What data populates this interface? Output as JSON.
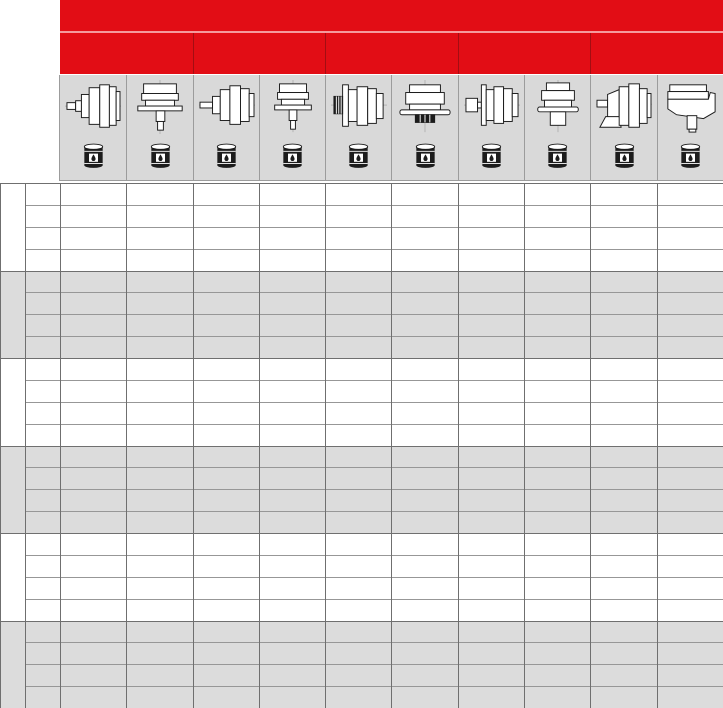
{
  "colors": {
    "accent_red": "#e20d15",
    "red_divider": "#a30d12",
    "red_band_gap": "#f59a9d",
    "header_cell_gray": "#d9d9d9",
    "row_gray": "#dcdcdc",
    "grid_line": "#6f6f6f",
    "row_line": "#979797",
    "drawing_ink": "#1c1c1c"
  },
  "header": {
    "title_band": {
      "text": ""
    },
    "group_cells": [
      {
        "text": ""
      },
      {
        "text": ""
      },
      {
        "text": ""
      },
      {
        "text": ""
      },
      {
        "text": ""
      }
    ],
    "columns": [
      {
        "icon": "gearmotor-horizontal-shaft-left-icon",
        "symbol": "m1",
        "oil_icon": "oil-barrel-icon"
      },
      {
        "icon": "gearmotor-vertical-shaft-down-icon",
        "symbol": "m2",
        "oil_icon": "oil-barrel-icon"
      },
      {
        "icon": "gearmotor-horizontal-long-shaft-icon",
        "symbol": "m3",
        "oil_icon": "oil-barrel-icon"
      },
      {
        "icon": "gearmotor-vertical-shaft-down-narrow-icon",
        "symbol": "m4",
        "oil_icon": "oil-barrel-icon"
      },
      {
        "icon": "gearmotor-horizontal-ribbed-hub-icon",
        "symbol": "m5",
        "oil_icon": "oil-barrel-icon"
      },
      {
        "icon": "gearmotor-vertical-wide-flange-hub-icon",
        "symbol": "m6",
        "oil_icon": "oil-barrel-icon"
      },
      {
        "icon": "gearmotor-horizontal-coupling-block-icon",
        "symbol": "m7",
        "oil_icon": "oil-barrel-icon"
      },
      {
        "icon": "gearmotor-vertical-coupling-block-icon",
        "symbol": "m8",
        "oil_icon": "oil-barrel-icon"
      },
      {
        "icon": "gearmotor-horizontal-foot-mounted-icon",
        "symbol": "m9",
        "oil_icon": "oil-barrel-icon"
      },
      {
        "icon": "gearmotor-angled-shaft-down-icon",
        "symbol": "m10",
        "oil_icon": "oil-barrel-icon"
      }
    ]
  },
  "body": {
    "data_column_count": 10,
    "row_groups": [
      {
        "shade": "white",
        "rows": 4
      },
      {
        "shade": "gray",
        "rows": 4
      },
      {
        "shade": "white",
        "rows": 4
      },
      {
        "shade": "gray",
        "rows": 4
      },
      {
        "shade": "white",
        "rows": 4
      },
      {
        "shade": "gray",
        "rows": 4
      }
    ],
    "cells": {
      "all_values": ""
    }
  }
}
